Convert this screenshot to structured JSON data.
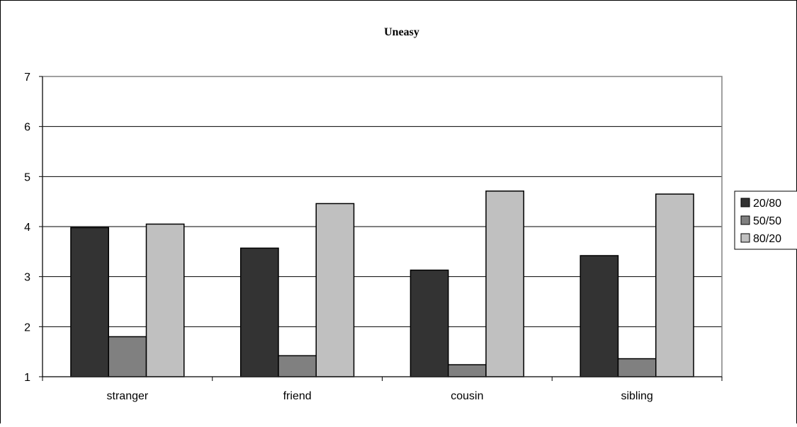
{
  "chart_data": {
    "type": "bar",
    "title": "Uneasy",
    "xlabel": "",
    "ylabel": "",
    "categories": [
      "stranger",
      "friend",
      "cousin",
      "sibling"
    ],
    "series": [
      {
        "name": "20/80",
        "values": [
          3.98,
          3.57,
          3.13,
          3.42
        ],
        "color": "#333333"
      },
      {
        "name": "50/50",
        "values": [
          1.8,
          1.42,
          1.24,
          1.36
        ],
        "color": "#808080"
      },
      {
        "name": "80/20",
        "values": [
          4.05,
          4.46,
          4.71,
          4.65
        ],
        "color": "#c0c0c0"
      }
    ],
    "ylim": [
      1,
      7
    ],
    "yticks": [
      "1",
      "2",
      "3",
      "4",
      "5",
      "6",
      "7"
    ],
    "grid": true,
    "legend_position": "right",
    "colors": {
      "plot_border": "#808080",
      "gridline": "#000000",
      "bar_stroke": "#000000"
    }
  }
}
